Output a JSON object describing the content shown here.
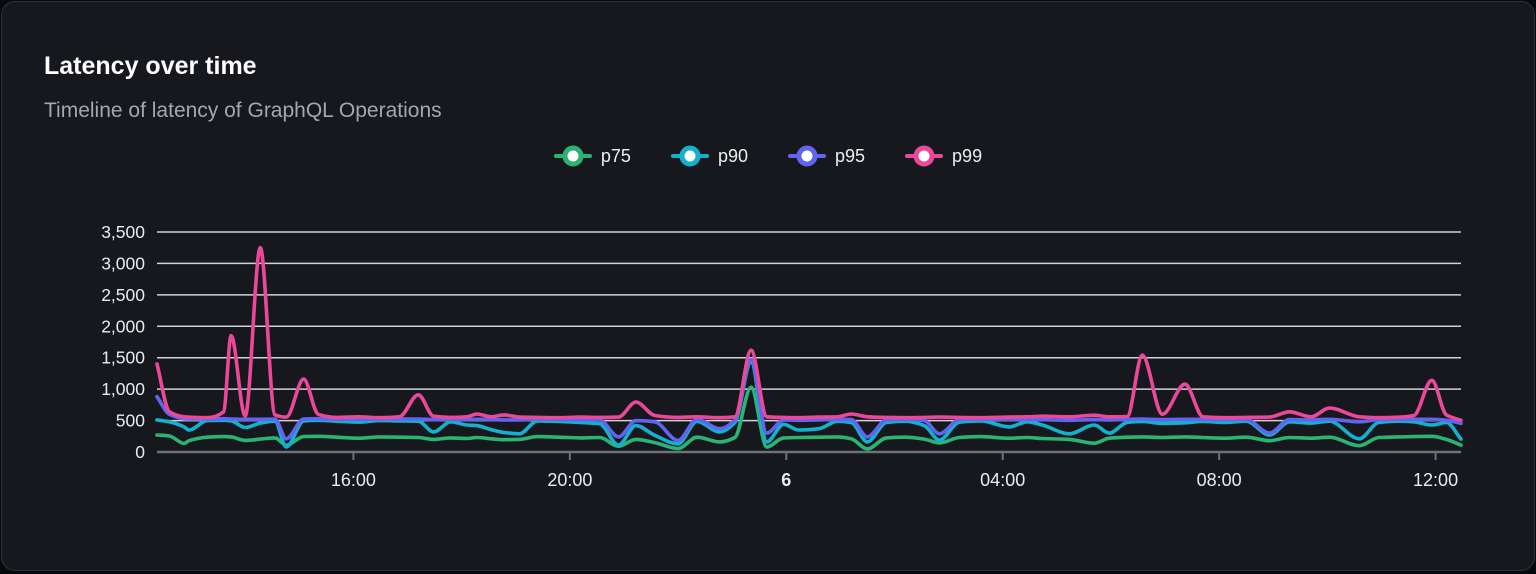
{
  "panel": {
    "title": "Latency over time",
    "subtitle": "Timeline of latency of GraphQL Operations"
  },
  "colors": {
    "card_background": "#16181d",
    "card_border": "#2f3237",
    "gridline": "#ced2d9",
    "axis_line": "#6e7276",
    "tick_label": "#e9ebee"
  },
  "chart_data": {
    "type": "line",
    "title": "Latency over time",
    "xlabel": "",
    "ylabel": "",
    "x_unit": "decimal hours, 0 = 12:00 noon of day 5, 24 = 12:00 noon of day 6",
    "xlim": [
      0.37,
      24.47
    ],
    "ylim": [
      0,
      3500
    ],
    "grid": "horizontal",
    "legend_position": "top-center",
    "y_ticks": [
      0,
      500,
      1000,
      1500,
      2000,
      2500,
      3000,
      3500
    ],
    "x_ticks": [
      {
        "t": 4,
        "label": "16:00",
        "bold": false
      },
      {
        "t": 8,
        "label": "20:00",
        "bold": false
      },
      {
        "t": 12,
        "label": "6",
        "bold": true
      },
      {
        "t": 16,
        "label": "04:00",
        "bold": false
      },
      {
        "t": 20,
        "label": "08:00",
        "bold": false
      },
      {
        "t": 24,
        "label": "12:00",
        "bold": false
      }
    ],
    "series": [
      {
        "name": "p75",
        "color": "#2cb373"
      },
      {
        "name": "p90",
        "color": "#14b0cd"
      },
      {
        "name": "p95",
        "color": "#6164ef"
      },
      {
        "name": "p99",
        "color": "#ec4899"
      }
    ],
    "columns": [
      "t",
      "p75",
      "p90",
      "p95",
      "p99"
    ],
    "rows": [
      [
        0.37,
        270,
        510,
        880,
        1400
      ],
      [
        0.6,
        255,
        480,
        600,
        640
      ],
      [
        0.87,
        135,
        400,
        530,
        560
      ],
      [
        0.96,
        180,
        350,
        525,
        555
      ],
      [
        1.3,
        235,
        500,
        525,
        545
      ],
      [
        1.6,
        245,
        505,
        530,
        640
      ],
      [
        1.74,
        240,
        495,
        525,
        1850
      ],
      [
        2.0,
        185,
        390,
        520,
        575
      ],
      [
        2.28,
        205,
        460,
        520,
        3250
      ],
      [
        2.55,
        225,
        490,
        525,
        590
      ],
      [
        2.76,
        110,
        80,
        210,
        555
      ],
      [
        3.08,
        245,
        495,
        525,
        1160
      ],
      [
        3.35,
        250,
        505,
        530,
        600
      ],
      [
        3.7,
        235,
        490,
        520,
        550
      ],
      [
        4.1,
        220,
        475,
        520,
        560
      ],
      [
        4.5,
        240,
        500,
        525,
        545
      ],
      [
        4.85,
        235,
        495,
        525,
        560
      ],
      [
        5.2,
        230,
        490,
        525,
        910
      ],
      [
        5.48,
        200,
        320,
        515,
        570
      ],
      [
        5.8,
        225,
        480,
        520,
        550
      ],
      [
        6.1,
        215,
        430,
        515,
        560
      ],
      [
        6.28,
        230,
        420,
        520,
        605
      ],
      [
        6.55,
        210,
        355,
        515,
        560
      ],
      [
        6.78,
        195,
        310,
        510,
        590
      ],
      [
        7.07,
        200,
        290,
        510,
        555
      ],
      [
        7.4,
        245,
        495,
        525,
        550
      ],
      [
        7.8,
        235,
        485,
        520,
        545
      ],
      [
        8.2,
        225,
        470,
        515,
        555
      ],
      [
        8.55,
        230,
        450,
        510,
        550
      ],
      [
        8.9,
        90,
        110,
        240,
        555
      ],
      [
        9.22,
        200,
        420,
        500,
        795
      ],
      [
        9.57,
        150,
        265,
        480,
        580
      ],
      [
        10.0,
        55,
        130,
        185,
        550
      ],
      [
        10.35,
        235,
        485,
        520,
        560
      ],
      [
        10.77,
        160,
        320,
        370,
        545
      ],
      [
        11.05,
        230,
        470,
        510,
        560
      ],
      [
        11.35,
        1030,
        1430,
        1470,
        1620
      ],
      [
        11.64,
        80,
        160,
        300,
        560
      ],
      [
        11.95,
        225,
        440,
        510,
        550
      ],
      [
        12.23,
        230,
        350,
        505,
        545
      ],
      [
        12.6,
        235,
        370,
        510,
        555
      ],
      [
        12.95,
        240,
        490,
        520,
        560
      ],
      [
        13.2,
        210,
        470,
        515,
        605
      ],
      [
        13.5,
        50,
        160,
        240,
        560
      ],
      [
        13.85,
        225,
        470,
        510,
        550
      ],
      [
        14.2,
        235,
        490,
        520,
        545
      ],
      [
        14.55,
        205,
        420,
        500,
        550
      ],
      [
        14.83,
        145,
        190,
        290,
        555
      ],
      [
        15.2,
        230,
        475,
        515,
        550
      ],
      [
        15.6,
        245,
        495,
        525,
        545
      ],
      [
        16.12,
        220,
        400,
        515,
        555
      ],
      [
        16.45,
        230,
        480,
        520,
        560
      ],
      [
        16.73,
        215,
        430,
        515,
        570
      ],
      [
        17.23,
        200,
        290,
        505,
        560
      ],
      [
        17.69,
        140,
        430,
        515,
        585
      ],
      [
        17.97,
        220,
        300,
        510,
        560
      ],
      [
        18.3,
        235,
        470,
        520,
        565
      ],
      [
        18.58,
        240,
        485,
        525,
        1540
      ],
      [
        18.95,
        230,
        455,
        515,
        600
      ],
      [
        19.37,
        240,
        465,
        520,
        1080
      ],
      [
        19.7,
        230,
        485,
        520,
        560
      ],
      [
        20.1,
        220,
        470,
        515,
        545
      ],
      [
        20.5,
        235,
        490,
        520,
        550
      ],
      [
        20.93,
        180,
        270,
        300,
        555
      ],
      [
        21.3,
        230,
        480,
        515,
        640
      ],
      [
        21.7,
        220,
        460,
        510,
        560
      ],
      [
        22.04,
        235,
        490,
        520,
        700
      ],
      [
        22.59,
        100,
        210,
        480,
        560
      ],
      [
        22.95,
        230,
        470,
        515,
        545
      ],
      [
        23.35,
        240,
        490,
        520,
        555
      ],
      [
        23.6,
        245,
        480,
        520,
        580
      ],
      [
        23.93,
        250,
        430,
        520,
        1140
      ],
      [
        24.2,
        200,
        470,
        505,
        590
      ],
      [
        24.47,
        110,
        205,
        455,
        505
      ]
    ]
  }
}
